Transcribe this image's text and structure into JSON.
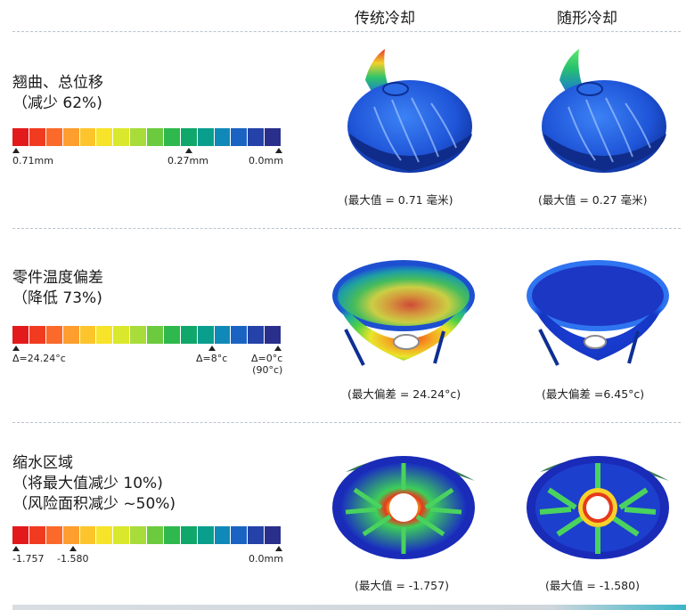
{
  "headers": {
    "conventional": "传统冷却",
    "conformal": "随形冷却"
  },
  "scale_colors": [
    "#e31a1c",
    "#f03b20",
    "#fb6a2a",
    "#fd9e2e",
    "#fdc52c",
    "#f7e32a",
    "#d9e82c",
    "#a8dc3a",
    "#6cca3f",
    "#2fb84d",
    "#10a76a",
    "#0a9e8d",
    "#1189b8",
    "#1a63c3",
    "#2542a8",
    "#2a2f8c"
  ],
  "sections": [
    {
      "title_lines": [
        "翘曲、总位移",
        "（减少 62%)"
      ],
      "scale_labels": [
        "0.71mm",
        "0.27mm",
        "0.0mm"
      ],
      "captions": [
        "(最大值 = 0.71 毫米)",
        "(最大值 = 0.27 毫米)"
      ]
    },
    {
      "title_lines": [
        "零件温度偏差",
        "（降低 73%)"
      ],
      "scale_labels": [
        "Δ=24.24°c",
        "Δ=8°c",
        "Δ=0°c",
        "(90°c)"
      ],
      "captions": [
        "(最大偏差 = 24.24°c)",
        "(最大偏差 =6.45°c)"
      ]
    },
    {
      "title_lines": [
        "缩水区域",
        "（将最大值减少 10%)",
        "（风险面积减少 ~50%)"
      ],
      "scale_labels": [
        "-1.757",
        "-1.580",
        "0.0mm"
      ],
      "captions": [
        "(最大值 = -1.757)",
        "(最大值 = -1.580)"
      ]
    }
  ]
}
